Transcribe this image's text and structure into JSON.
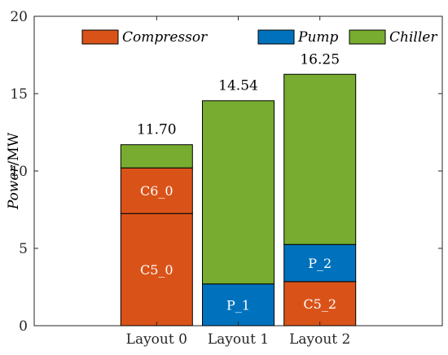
{
  "chart_data": {
    "type": "bar",
    "stacked": true,
    "categories": [
      "Layout 0",
      "Layout 1",
      "Layout 2"
    ],
    "series": [
      {
        "name": "Compressor",
        "color": "#d95319",
        "segments": [
          [
            {
              "value": 7.25,
              "label": "C5_0"
            },
            {
              "value": 2.95,
              "label": "C6_0"
            }
          ],
          [],
          [
            {
              "value": 2.85,
              "label": "C5_2"
            }
          ]
        ]
      },
      {
        "name": "Pump",
        "color": "#0072bd",
        "segments": [
          [],
          [
            {
              "value": 2.7,
              "label": "P_1"
            }
          ],
          [
            {
              "value": 2.4,
              "label": "P_2"
            }
          ]
        ]
      },
      {
        "name": "Chiller",
        "color": "#77ac30",
        "segments": [
          [
            {
              "value": 1.5,
              "label": ""
            }
          ],
          [
            {
              "value": 11.84,
              "label": ""
            }
          ],
          [
            {
              "value": 11.0,
              "label": ""
            }
          ]
        ]
      }
    ],
    "totals": [
      "11.70",
      "14.54",
      "16.25"
    ],
    "ylabel_var": "Power",
    "ylabel_unit": "/MW",
    "xlabel": "",
    "ylim": [
      0,
      20
    ],
    "yticks": [
      0,
      5,
      10,
      15,
      20
    ],
    "legend_position": "top",
    "grid": false
  }
}
